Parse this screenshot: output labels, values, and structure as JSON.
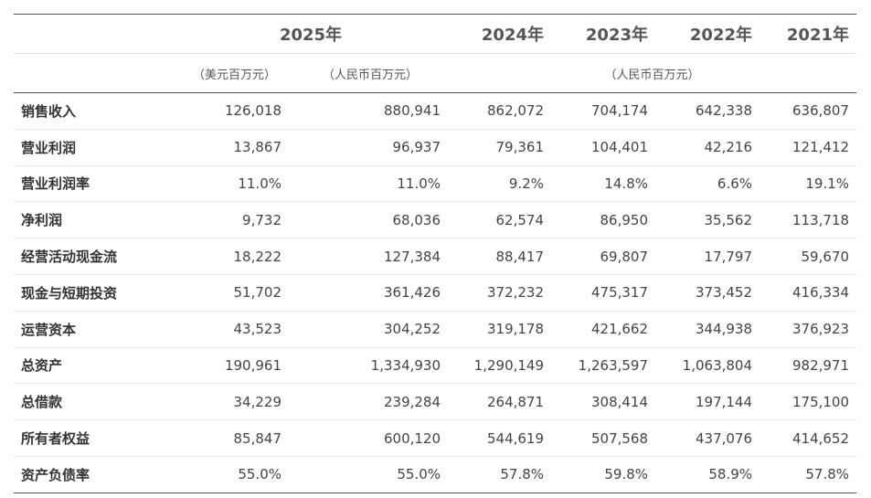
{
  "years": {
    "y2025": "2025年",
    "y2024": "2024年",
    "y2023": "2023年",
    "y2022": "2022年",
    "y2021": "2021年"
  },
  "units": {
    "usd": "（美元百万元）",
    "rmb_2025": "（人民币百万元）",
    "rmb_history": "（人民币百万元）"
  },
  "rows": [
    {
      "label": "销售收入",
      "values": [
        "126,018",
        "880,941",
        "862,072",
        "704,174",
        "642,338",
        "636,807"
      ]
    },
    {
      "label": "营业利润",
      "values": [
        "13,867",
        "96,937",
        "79,361",
        "104,401",
        "42,216",
        "121,412"
      ]
    },
    {
      "label": "营业利润率",
      "values": [
        "11.0%",
        "11.0%",
        "9.2%",
        "14.8%",
        "6.6%",
        "19.1%"
      ]
    },
    {
      "label": "净利润",
      "values": [
        "9,732",
        "68,036",
        "62,574",
        "86,950",
        "35,562",
        "113,718"
      ]
    },
    {
      "label": "经营活动现金流",
      "values": [
        "18,222",
        "127,384",
        "88,417",
        "69,807",
        "17,797",
        "59,670"
      ]
    },
    {
      "label": "现金与短期投资",
      "values": [
        "51,702",
        "361,426",
        "372,232",
        "475,317",
        "373,452",
        "416,334"
      ]
    },
    {
      "label": "运营资本",
      "values": [
        "43,523",
        "304,252",
        "319,178",
        "421,662",
        "344,938",
        "376,923"
      ]
    },
    {
      "label": "总资产",
      "values": [
        "190,961",
        "1,334,930",
        "1,290,149",
        "1,263,597",
        "1,063,804",
        "982,971"
      ]
    },
    {
      "label": "总借款",
      "values": [
        "34,229",
        "239,284",
        "264,871",
        "308,414",
        "197,144",
        "175,100"
      ]
    },
    {
      "label": "所有者权益",
      "values": [
        "85,847",
        "600,120",
        "544,619",
        "507,568",
        "437,076",
        "414,652"
      ]
    },
    {
      "label": "资产负债率",
      "values": [
        "55.0%",
        "55.0%",
        "57.8%",
        "59.8%",
        "58.9%",
        "57.8%"
      ]
    }
  ]
}
